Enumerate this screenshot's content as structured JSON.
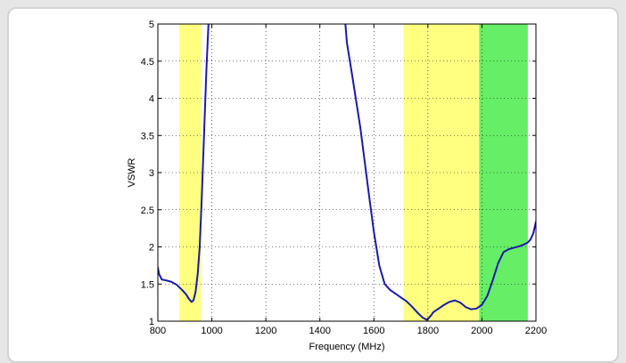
{
  "chart_data": {
    "type": "line",
    "title": "",
    "xlabel": "Frequency (MHz)",
    "ylabel": "VSWR",
    "xlim": [
      800,
      2200
    ],
    "ylim": [
      1,
      5
    ],
    "xticks": [
      800,
      1000,
      1200,
      1400,
      1600,
      1800,
      2000,
      2200
    ],
    "xtick_labels": [
      "800",
      "1000",
      "1200",
      "1400",
      "1600",
      "1800",
      "2000",
      "2200"
    ],
    "yticks": [
      1,
      1.5,
      2,
      2.5,
      3,
      3.5,
      4,
      4.5,
      5
    ],
    "ytick_labels": [
      "1",
      "1.5",
      "2",
      "2.5",
      "3",
      "3.5",
      "4",
      "4.5",
      "5"
    ],
    "grid": true,
    "bands": [
      {
        "x0": 880,
        "x1": 960,
        "color": "#ffff80"
      },
      {
        "x0": 1710,
        "x1": 1990,
        "color": "#ffff80"
      },
      {
        "x0": 1990,
        "x1": 2170,
        "color": "#66ee66"
      }
    ],
    "series": [
      {
        "color": "#1a1aaa",
        "x": [
          800,
          805,
          815,
          830,
          850,
          870,
          890,
          905,
          915,
          925,
          932,
          940,
          948,
          955,
          962,
          968,
          975,
          980,
          985,
          990,
          994,
          1480,
          1490,
          1500,
          1520,
          1550,
          1580,
          1600,
          1620,
          1640,
          1660,
          1680,
          1700,
          1720,
          1740,
          1760,
          1780,
          1795,
          1800,
          1810,
          1820,
          1840,
          1860,
          1880,
          1900,
          1920,
          1940,
          1960,
          1980,
          2000,
          2020,
          2040,
          2060,
          2080,
          2100,
          2120,
          2140,
          2160,
          2170,
          2180,
          2190,
          2200
        ],
        "y": [
          1.72,
          1.63,
          1.56,
          1.55,
          1.53,
          1.49,
          1.42,
          1.36,
          1.3,
          1.26,
          1.28,
          1.4,
          1.65,
          2.0,
          2.6,
          3.2,
          3.9,
          4.4,
          4.8,
          5.2,
          5.6,
          5.6,
          5.2,
          4.75,
          4.3,
          3.6,
          2.75,
          2.2,
          1.75,
          1.5,
          1.42,
          1.37,
          1.32,
          1.27,
          1.2,
          1.12,
          1.05,
          1.02,
          1.03,
          1.07,
          1.12,
          1.17,
          1.22,
          1.26,
          1.28,
          1.25,
          1.19,
          1.16,
          1.17,
          1.22,
          1.34,
          1.55,
          1.78,
          1.93,
          1.97,
          1.99,
          2.01,
          2.04,
          2.06,
          2.1,
          2.18,
          2.34
        ]
      }
    ]
  }
}
